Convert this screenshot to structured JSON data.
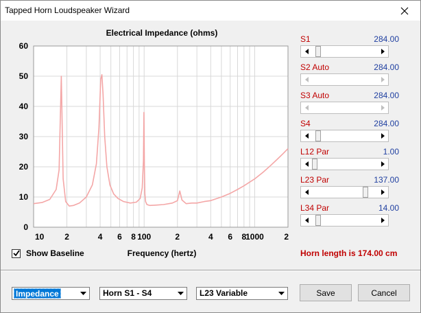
{
  "window": {
    "title": "Tapped Horn Loudspeaker Wizard"
  },
  "chart_data": {
    "type": "line",
    "title": "Electrical Impedance (ohms)",
    "xlabel": "Frequency (hertz)",
    "ylabel": "",
    "xscale": "log",
    "xlim": [
      10,
      2000
    ],
    "ylim": [
      0,
      60
    ],
    "grid": true,
    "y_ticks": [
      "0",
      "10",
      "20",
      "30",
      "40",
      "50",
      "60"
    ],
    "x_ticks": [
      "10",
      "2",
      "4",
      "6",
      "8",
      "100",
      "2",
      "4",
      "6",
      "8",
      "1000",
      "2"
    ],
    "x_tick_values": [
      10,
      20,
      40,
      60,
      80,
      100,
      200,
      400,
      600,
      800,
      1000,
      2000
    ],
    "line_color": "#f4a6a6",
    "series": [
      {
        "x": [
          10,
          12,
          14,
          16,
          17,
          17.8,
          18.5,
          19.5,
          21,
          23,
          26,
          30,
          34,
          37,
          39,
          40.5,
          41.5,
          42.5,
          44,
          46,
          49,
          53,
          58,
          65,
          75,
          85,
          92,
          96,
          98.5,
          99.5,
          100.5,
          101.5,
          103,
          106,
          112,
          125,
          150,
          180,
          200,
          210,
          220,
          240,
          270,
          300,
          350,
          400,
          500,
          600,
          700,
          800,
          1000,
          1200,
          1400,
          1600,
          1800,
          2000
        ],
        "y": [
          7.8,
          8.2,
          9.2,
          12.5,
          19,
          50,
          16,
          8.5,
          7.0,
          7.2,
          8.0,
          10.0,
          14.0,
          21.0,
          33.0,
          49.0,
          50.5,
          44,
          30,
          20,
          14,
          11,
          9.5,
          8.5,
          8.0,
          8.3,
          9.5,
          13,
          22,
          38,
          20,
          11,
          8.5,
          7.5,
          7.2,
          7.3,
          7.5,
          8.0,
          8.8,
          12,
          9.0,
          7.8,
          8.0,
          8.0,
          8.5,
          8.8,
          10.0,
          11.2,
          12.5,
          13.7,
          16.0,
          18.3,
          20.5,
          22.5,
          24.3,
          26
        ]
      }
    ]
  },
  "controls": {
    "show_baseline_label": "Show Baseline",
    "show_baseline_checked": true
  },
  "sliders": [
    {
      "name": "S1",
      "mode": "",
      "value": "284.00",
      "level": 0.06,
      "enabled": true
    },
    {
      "name": "S2",
      "mode": "Auto",
      "value": "284.00",
      "level": 0.06,
      "enabled": false
    },
    {
      "name": "S3",
      "mode": "Auto",
      "value": "284.00",
      "level": 0.06,
      "enabled": false
    },
    {
      "name": "S4",
      "mode": "",
      "value": "284.00",
      "level": 0.06,
      "enabled": true
    },
    {
      "name": "L12",
      "mode": "Par",
      "value": "1.00",
      "level": 0.0,
      "enabled": true
    },
    {
      "name": "L23",
      "mode": "Par",
      "value": "137.00",
      "level": 0.85,
      "enabled": true
    },
    {
      "name": "L34",
      "mode": "Par",
      "value": "14.00",
      "level": 0.06,
      "enabled": true
    }
  ],
  "status": {
    "horn_length": "Horn length is 174.00 cm"
  },
  "bottom": {
    "plot_select": "Impedance",
    "horn_select": "Horn S1 - S4",
    "variable_select": "L23 Variable",
    "save_label": "Save",
    "cancel_label": "Cancel"
  }
}
